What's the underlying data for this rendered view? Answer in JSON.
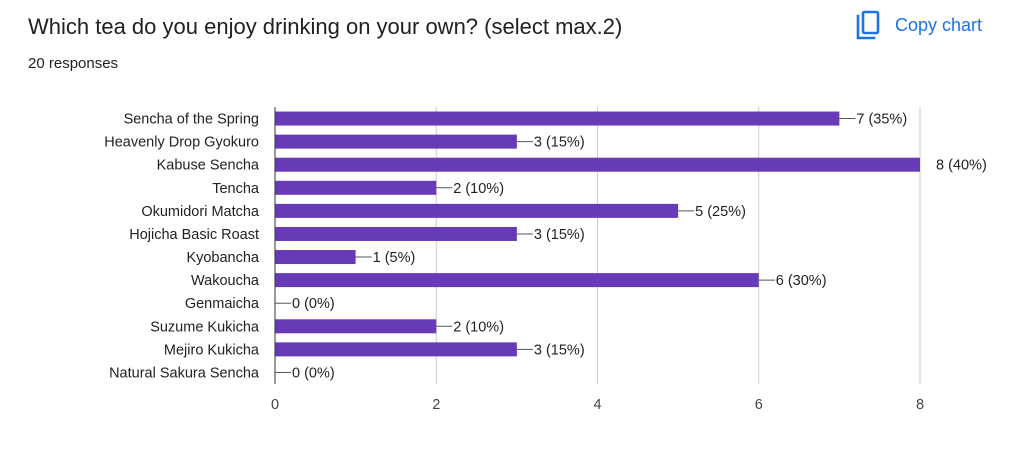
{
  "header": {
    "title": "Which tea do you enjoy drinking on your own? (select max.2)",
    "responses": "20 responses",
    "copy_label": "Copy chart",
    "copy_icon": "copy-icon"
  },
  "colors": {
    "bar": "#673ab7",
    "accent": "#1a73e8",
    "grid": "#cccccc",
    "axis": "#333333"
  },
  "chart_data": {
    "type": "bar",
    "orientation": "horizontal",
    "categories": [
      "Sencha of the Spring",
      "Heavenly Drop Gyokuro",
      "Kabuse Sencha",
      "Tencha",
      "Okumidori Matcha",
      "Hojicha Basic Roast",
      "Kyobancha",
      "Wakoucha",
      "Genmaicha",
      "Suzume Kukicha",
      "Mejiro Kukicha",
      "Natural Sakura Sencha"
    ],
    "values": [
      7,
      3,
      8,
      2,
      5,
      3,
      1,
      6,
      0,
      2,
      3,
      0
    ],
    "labels": [
      "7 (35%)",
      "3 (15%)",
      "8 (40%)",
      "2 (10%)",
      "5 (25%)",
      "3 (15%)",
      "1 (5%)",
      "6 (30%)",
      "0 (0%)",
      "2 (10%)",
      "3 (15%)",
      "0 (0%)"
    ],
    "xlim": [
      0,
      8
    ],
    "xticks": [
      0,
      2,
      4,
      6,
      8
    ],
    "xtick_labels": [
      "0",
      "2",
      "4",
      "6",
      "8"
    ],
    "grid": true
  }
}
